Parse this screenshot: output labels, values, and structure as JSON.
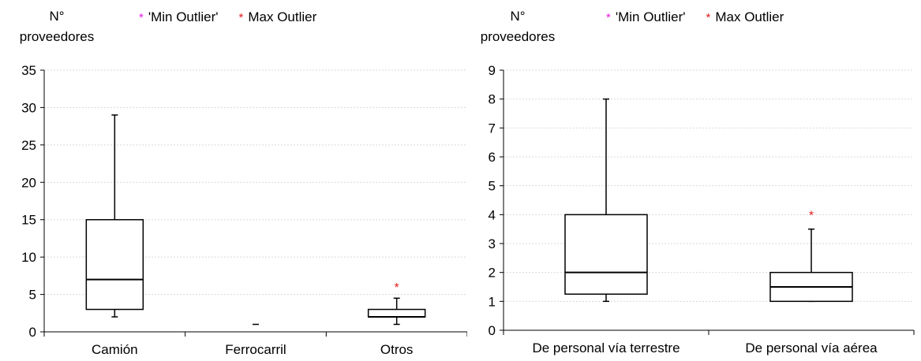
{
  "chart_data": [
    {
      "type": "box",
      "ylabel_line1": "N°",
      "ylabel_line2": "proveedores",
      "legend": [
        {
          "label": "'Min Outlier'",
          "marker": "*",
          "color": "#e020e0"
        },
        {
          "label": "Max Outlier",
          "marker": "*",
          "color": "#e02020"
        }
      ],
      "ylim": [
        0,
        35
      ],
      "yticks": [
        0,
        5,
        10,
        15,
        20,
        25,
        30,
        35
      ],
      "categories": [
        "Camión",
        "Ferrocarril",
        "Otros"
      ],
      "boxes": [
        {
          "category": "Camión",
          "min": 2,
          "q1": 3,
          "median": 7,
          "q3": 15,
          "max": 29,
          "max_outliers": []
        },
        {
          "category": "Ferrocarril",
          "min": 1,
          "q1": 1,
          "median": 1,
          "q3": 1,
          "max": 1,
          "max_outliers": []
        },
        {
          "category": "Otros",
          "min": 1,
          "q1": 2,
          "median": 2,
          "q3": 3,
          "max": 4.5,
          "max_outliers": [
            6
          ]
        }
      ],
      "grid": true
    },
    {
      "type": "box",
      "ylabel_line1": "N°",
      "ylabel_line2": "proveedores",
      "legend": [
        {
          "label": "'Min Outlier'",
          "marker": "*",
          "color": "#e020e0"
        },
        {
          "label": "Max Outlier",
          "marker": "*",
          "color": "#e02020"
        }
      ],
      "ylim": [
        0,
        9
      ],
      "yticks": [
        0,
        1,
        2,
        3,
        4,
        5,
        6,
        7,
        8,
        9
      ],
      "categories": [
        "De personal vía terrestre",
        "De personal vía aérea"
      ],
      "boxes": [
        {
          "category": "De personal vía terrestre",
          "min": 1,
          "q1": 1.25,
          "median": 2,
          "q3": 4,
          "max": 8,
          "max_outliers": []
        },
        {
          "category": "De personal vía aérea",
          "min": 1,
          "q1": 1,
          "median": 1.5,
          "q3": 2,
          "max": 3.5,
          "max_outliers": [
            4
          ]
        }
      ],
      "grid": true
    }
  ]
}
